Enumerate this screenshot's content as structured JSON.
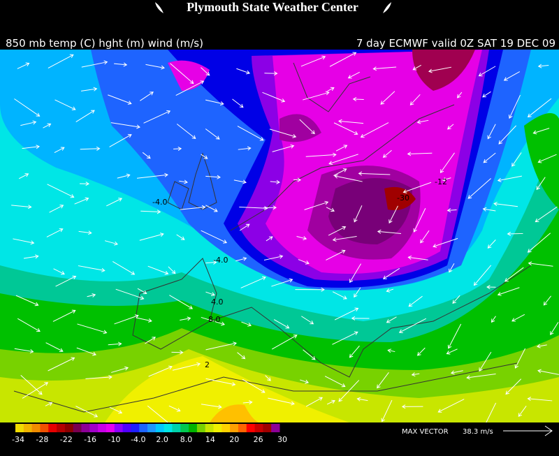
{
  "header": {
    "title": "Plymouth State Weather Center",
    "left_caption": "850 mb temp (C) hght (m) wind (m/s)",
    "right_caption": "7 day ECMWF valid 0Z SAT 19 DEC 09"
  },
  "map": {
    "contour_labels": [
      "-4.0",
      "-4.0",
      "4.0",
      "8.0",
      "-12",
      "-30",
      "2"
    ]
  },
  "colorbar": {
    "labels": [
      "-34",
      "-28",
      "-22",
      "-16",
      "-10",
      "-4.0",
      "2.0",
      "8.0",
      "14",
      "20",
      "26",
      "30"
    ]
  },
  "footer": {
    "max_vector_label": "MAX VECTOR",
    "max_vector_value": "38.3 m/s"
  }
}
